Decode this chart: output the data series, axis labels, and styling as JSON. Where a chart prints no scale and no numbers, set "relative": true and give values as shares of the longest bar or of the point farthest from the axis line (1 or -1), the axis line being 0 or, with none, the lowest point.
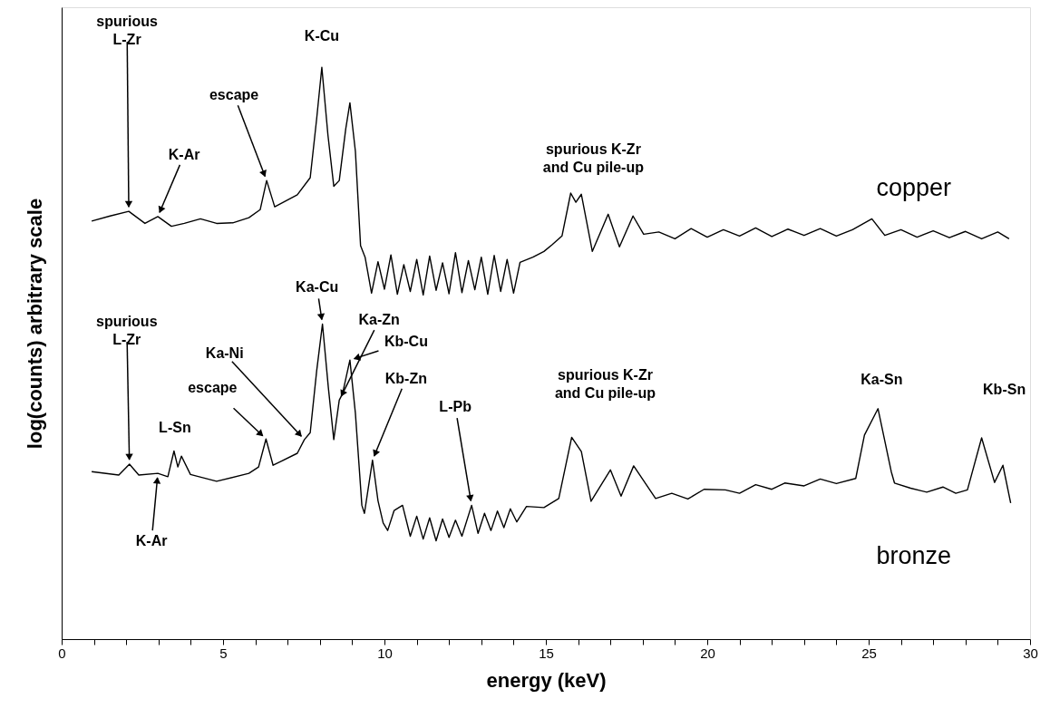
{
  "chart_data": {
    "type": "line",
    "relative": true,
    "xlabel": "energy (keV)",
    "ylabel": "log(counts) arbitrary scale",
    "marker": "none",
    "line_style": "solid",
    "xlim": [
      0,
      30
    ],
    "xticks": [
      0,
      {
        "value": 1,
        "label": null
      },
      {
        "value": 2,
        "label": null
      },
      {
        "value": 3,
        "label": null
      },
      {
        "value": 4,
        "label": null
      },
      5,
      {
        "value": 6,
        "label": null
      },
      {
        "value": 7,
        "label": null
      },
      {
        "value": 8,
        "label": null
      },
      {
        "value": 9,
        "label": null
      },
      10,
      {
        "value": 11,
        "label": null
      },
      {
        "value": 12,
        "label": null
      },
      {
        "value": 13,
        "label": null
      },
      {
        "value": 14,
        "label": null
      },
      15,
      {
        "value": 16,
        "label": null
      },
      {
        "value": 17,
        "label": null
      },
      {
        "value": 18,
        "label": null
      },
      {
        "value": 19,
        "label": null
      },
      20,
      {
        "value": 21,
        "label": null
      },
      {
        "value": 22,
        "label": null
      },
      {
        "value": 23,
        "label": null
      },
      {
        "value": 24,
        "label": null
      },
      25,
      {
        "value": 26,
        "label": null
      },
      {
        "value": 27,
        "label": null
      },
      {
        "value": 28,
        "label": null
      },
      {
        "value": 29,
        "label": null
      },
      30
    ],
    "series": [
      {
        "name": "copper",
        "color": "#000000",
        "x": [
          0.93,
          1.5,
          2.08,
          2.58,
          2.98,
          3.4,
          3.8,
          4.3,
          4.8,
          5.3,
          5.8,
          6.15,
          6.35,
          6.6,
          7.3,
          7.7,
          7.9,
          8.06,
          8.25,
          8.43,
          8.6,
          8.8,
          8.93,
          9.1,
          9.26,
          9.4,
          9.6,
          9.8,
          10.0,
          10.2,
          10.4,
          10.6,
          10.8,
          11.0,
          11.2,
          11.4,
          11.6,
          11.8,
          12.0,
          12.2,
          12.4,
          12.6,
          12.8,
          13.0,
          13.2,
          13.4,
          13.6,
          13.8,
          14.0,
          14.2,
          14.6,
          14.94,
          15.2,
          15.5,
          15.77,
          15.93,
          16.1,
          16.44,
          16.93,
          17.28,
          17.7,
          18.03,
          18.5,
          19.0,
          19.5,
          20.0,
          20.5,
          21.0,
          21.5,
          22.0,
          22.5,
          23.0,
          23.5,
          24.0,
          24.5,
          25.1,
          25.5,
          26.0,
          26.5,
          27.0,
          27.5,
          28.0,
          28.5,
          29.0,
          29.35
        ],
        "values": [
          0.731,
          0.74,
          0.748,
          0.727,
          0.739,
          0.722,
          0.727,
          0.735,
          0.727,
          0.728,
          0.737,
          0.751,
          0.802,
          0.756,
          0.777,
          0.807,
          0.91,
          1.0,
          0.881,
          0.792,
          0.802,
          0.892,
          0.938,
          0.853,
          0.688,
          0.668,
          0.605,
          0.66,
          0.612,
          0.672,
          0.603,
          0.655,
          0.608,
          0.664,
          0.602,
          0.67,
          0.61,
          0.658,
          0.604,
          0.676,
          0.606,
          0.662,
          0.611,
          0.668,
          0.603,
          0.671,
          0.608,
          0.664,
          0.605,
          0.659,
          0.668,
          0.678,
          0.69,
          0.705,
          0.78,
          0.764,
          0.778,
          0.678,
          0.743,
          0.686,
          0.74,
          0.708,
          0.712,
          0.7,
          0.718,
          0.703,
          0.716,
          0.705,
          0.719,
          0.704,
          0.717,
          0.706,
          0.718,
          0.705,
          0.716,
          0.735,
          0.706,
          0.716,
          0.703,
          0.714,
          0.702,
          0.713,
          0.7,
          0.712,
          0.7
        ]
      },
      {
        "name": "bronze",
        "color": "#000000",
        "x": [
          0.93,
          1.77,
          2.1,
          2.39,
          2.98,
          3.29,
          3.48,
          3.6,
          3.71,
          3.99,
          4.8,
          5.8,
          6.1,
          6.33,
          6.55,
          7.3,
          7.52,
          7.7,
          7.9,
          8.08,
          8.26,
          8.43,
          8.6,
          8.7,
          8.93,
          9.1,
          9.3,
          9.38,
          9.63,
          9.8,
          9.96,
          10.1,
          10.3,
          10.56,
          10.8,
          11.0,
          11.2,
          11.4,
          11.6,
          11.8,
          12.0,
          12.2,
          12.4,
          12.7,
          12.9,
          13.1,
          13.3,
          13.5,
          13.7,
          13.9,
          14.1,
          14.4,
          14.94,
          15.4,
          15.8,
          16.1,
          16.4,
          17.0,
          17.33,
          17.72,
          18.4,
          18.9,
          19.4,
          19.9,
          20.56,
          21.0,
          21.5,
          22.0,
          22.4,
          23.0,
          23.5,
          24.0,
          24.6,
          24.87,
          25.29,
          25.7,
          25.8,
          26.3,
          26.8,
          27.3,
          27.7,
          28.06,
          28.5,
          28.9,
          29.16,
          29.4
        ],
        "values": [
          0.293,
          0.287,
          0.306,
          0.287,
          0.29,
          0.284,
          0.329,
          0.301,
          0.32,
          0.288,
          0.276,
          0.29,
          0.301,
          0.35,
          0.304,
          0.325,
          0.349,
          0.361,
          0.469,
          0.551,
          0.441,
          0.349,
          0.418,
          0.429,
          0.488,
          0.395,
          0.234,
          0.22,
          0.313,
          0.242,
          0.203,
          0.19,
          0.225,
          0.234,
          0.18,
          0.215,
          0.175,
          0.212,
          0.172,
          0.21,
          0.178,
          0.208,
          0.18,
          0.234,
          0.185,
          0.22,
          0.19,
          0.224,
          0.195,
          0.228,
          0.205,
          0.232,
          0.23,
          0.246,
          0.353,
          0.328,
          0.241,
          0.296,
          0.25,
          0.303,
          0.246,
          0.255,
          0.245,
          0.262,
          0.261,
          0.255,
          0.27,
          0.262,
          0.273,
          0.268,
          0.28,
          0.272,
          0.281,
          0.357,
          0.403,
          0.293,
          0.273,
          0.264,
          0.257,
          0.266,
          0.255,
          0.261,
          0.352,
          0.274,
          0.304,
          0.238
        ]
      }
    ],
    "annotations": [
      {
        "text": "spurious\nL-Zr",
        "x": 2.08,
        "y": 0.748
      },
      {
        "text": "K-Cu",
        "x": 8.06,
        "y": 1.0
      },
      {
        "text": "escape",
        "x": 6.35,
        "y": 0.802
      },
      {
        "text": "K-Ar",
        "x": 2.98,
        "y": 0.739
      },
      {
        "text": "spurious K-Zr\nand Cu pile-up",
        "x": 15.77,
        "y": 0.78
      },
      {
        "text": "Ka-Cu",
        "x": 8.08,
        "y": 0.551
      },
      {
        "text": "spurious\nL-Zr",
        "x": 2.1,
        "y": 0.306
      },
      {
        "text": "Ka-Zn",
        "x": 8.6,
        "y": 0.418
      },
      {
        "text": "Kb-Cu",
        "x": 8.93,
        "y": 0.488
      },
      {
        "text": "Ka-Ni",
        "x": 7.52,
        "y": 0.349
      },
      {
        "text": "L-Sn",
        "x": 3.48,
        "y": 0.329
      },
      {
        "text": "escape",
        "x": 6.33,
        "y": 0.35
      },
      {
        "text": "Kb-Zn",
        "x": 9.63,
        "y": 0.313
      },
      {
        "text": "L-Pb",
        "x": 12.7,
        "y": 0.234
      },
      {
        "text": "K-Ar",
        "x": 2.98,
        "y": 0.29
      },
      {
        "text": "spurious K-Zr\nand Cu pile-up",
        "x": 15.8,
        "y": 0.353
      },
      {
        "text": "Ka-Sn",
        "x": 25.29,
        "y": 0.403
      },
      {
        "text": "Kb-Sn",
        "x": 28.5,
        "y": 0.352
      }
    ]
  }
}
